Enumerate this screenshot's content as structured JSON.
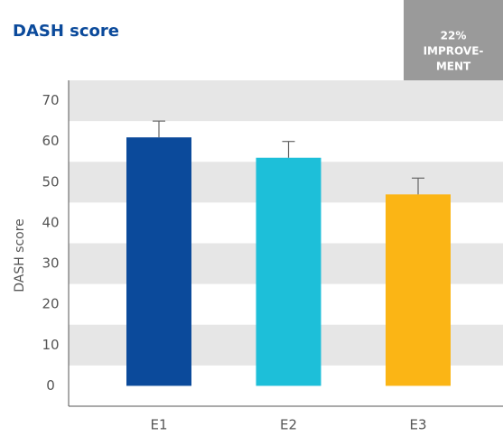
{
  "chart_data": {
    "type": "bar",
    "title": "DASH score",
    "y_label": "DASH score",
    "annotation": [
      "22%",
      "IMPROVE-",
      "MENT"
    ],
    "categories": [
      "E1",
      "E2",
      "E3"
    ],
    "values": [
      61,
      56,
      47
    ],
    "errors": [
      4,
      4,
      4
    ],
    "colors": [
      "#0b4a9b",
      "#1dbfd9",
      "#fbb515"
    ],
    "ylim": [
      -5,
      75
    ],
    "yticks": [
      0,
      10,
      20,
      30,
      40,
      50,
      60,
      70
    ],
    "grid": true
  }
}
